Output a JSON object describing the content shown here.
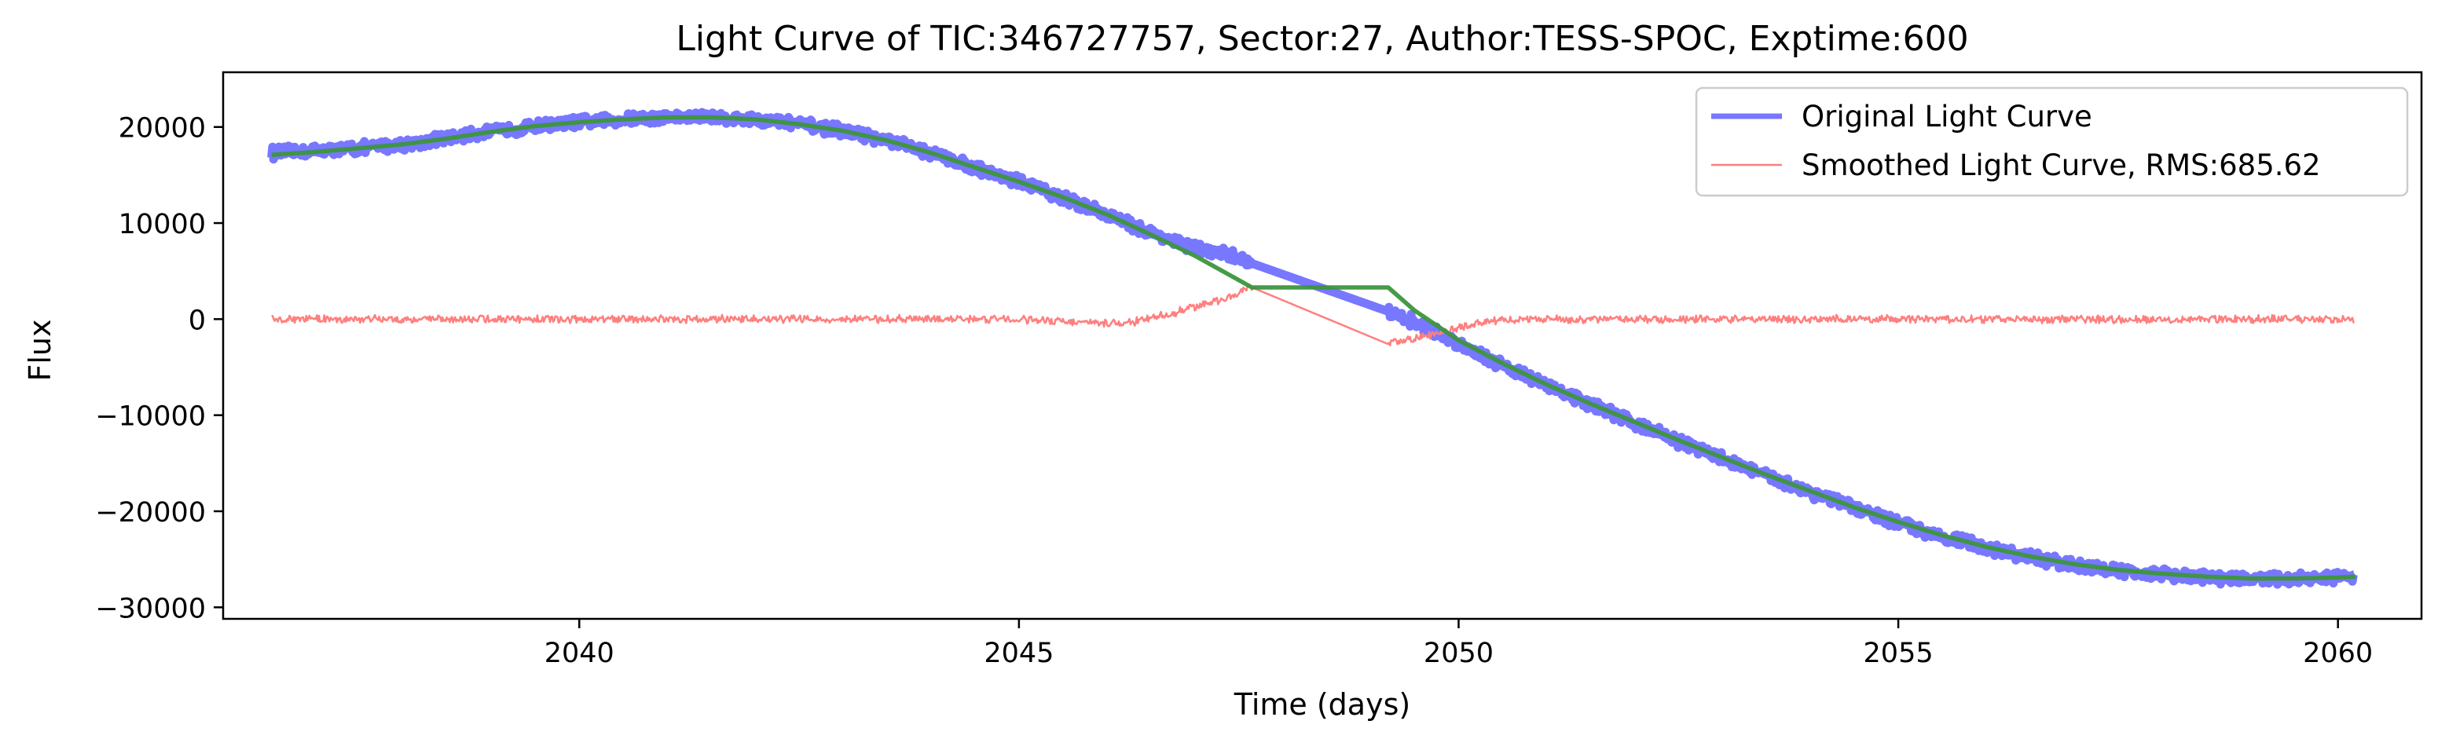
{
  "chart_data": {
    "type": "line",
    "title": "Light Curve of TIC:346727757, Sector:27, Author:TESS-SPOC, Exptime:600",
    "xlabel": "Time (days)",
    "ylabel": "Flux",
    "xlim": [
      2035.95,
      2060.95
    ],
    "ylim": [
      -31200,
      25700
    ],
    "xticks": [
      2040,
      2045,
      2050,
      2055,
      2060
    ],
    "yticks": [
      -30000,
      -20000,
      -10000,
      0,
      10000,
      20000
    ],
    "grid": false,
    "legend_position": "top-right",
    "colors": {
      "original": "#7777ff",
      "smoothed": "#3c963c",
      "residual": "#ff7f7f"
    },
    "series": [
      {
        "name": "Original Light Curve",
        "role": "original",
        "x": [
          2036.5,
          2037.0,
          2037.5,
          2038.0,
          2038.5,
          2039.0,
          2039.5,
          2040.0,
          2040.5,
          2041.0,
          2041.5,
          2042.0,
          2042.5,
          2043.0,
          2043.5,
          2044.0,
          2044.5,
          2045.0,
          2045.5,
          2046.0,
          2046.5,
          2047.0,
          2047.5,
          2047.65,
          2049.2,
          2049.5,
          2050.0,
          2050.5,
          2051.0,
          2051.5,
          2052.0,
          2052.5,
          2053.0,
          2053.5,
          2054.0,
          2054.5,
          2055.0,
          2055.5,
          2056.0,
          2056.5,
          2057.0,
          2057.5,
          2058.0,
          2058.5,
          2059.0,
          2059.5,
          2060.0,
          2060.2
        ],
        "y": [
          17300,
          17500,
          17800,
          18200,
          18800,
          19500,
          20100,
          20500,
          20800,
          21000,
          21000,
          20800,
          20300,
          19600,
          18600,
          17300,
          15800,
          14300,
          12700,
          10900,
          9000,
          7400,
          6400,
          5800,
          800,
          -300,
          -2500,
          -4800,
          -6900,
          -8900,
          -10800,
          -12700,
          -14500,
          -16300,
          -18000,
          -19700,
          -21200,
          -22600,
          -23800,
          -24800,
          -25600,
          -26200,
          -26600,
          -26900,
          -27100,
          -27100,
          -26900,
          -26800
        ]
      },
      {
        "name": "Smoothed Light Curve, RMS:685.62",
        "role": "residual",
        "x": [
          2036.5,
          2037.0,
          2038.0,
          2039.0,
          2040.0,
          2041.0,
          2042.0,
          2043.0,
          2044.0,
          2045.0,
          2045.5,
          2046.0,
          2046.3,
          2046.6,
          2046.9,
          2047.2,
          2047.5,
          2047.65,
          2049.2,
          2049.4,
          2049.7,
          2050.0,
          2050.3,
          2050.6,
          2051.0,
          2052.0,
          2053.0,
          2054.0,
          2055.0,
          2056.0,
          2057.0,
          2058.0,
          2059.0,
          2060.0,
          2060.2
        ],
        "y": [
          0,
          0,
          0,
          0,
          0,
          0,
          0,
          0,
          0,
          0,
          -200,
          -500,
          -300,
          300,
          1000,
          1800,
          2700,
          3300,
          -2600,
          -2200,
          -1600,
          -900,
          -300,
          0,
          0,
          0,
          0,
          0,
          0,
          0,
          0,
          0,
          0,
          0,
          0
        ]
      },
      {
        "role": "smoothed",
        "x": [
          2036.5,
          2037.0,
          2037.5,
          2038.0,
          2038.5,
          2039.0,
          2039.5,
          2040.0,
          2040.5,
          2041.0,
          2041.5,
          2042.0,
          2042.5,
          2043.0,
          2043.5,
          2044.0,
          2044.5,
          2045.0,
          2045.5,
          2046.0,
          2046.5,
          2047.0,
          2047.65,
          2049.2,
          2049.5,
          2050.0,
          2050.5,
          2051.0,
          2051.5,
          2052.0,
          2052.5,
          2053.0,
          2053.5,
          2054.0,
          2054.5,
          2055.0,
          2055.5,
          2056.0,
          2056.5,
          2057.0,
          2057.5,
          2058.0,
          2058.5,
          2059.0,
          2059.5,
          2060.0,
          2060.2
        ],
        "y": [
          17100,
          17400,
          17800,
          18200,
          18800,
          19500,
          20100,
          20500,
          20800,
          21000,
          21000,
          20800,
          20300,
          19600,
          18600,
          17300,
          15800,
          14300,
          12700,
          10900,
          8800,
          6600,
          3300,
          3300,
          900,
          -2200,
          -4600,
          -6800,
          -8800,
          -10700,
          -12600,
          -14400,
          -16200,
          -17900,
          -19600,
          -21100,
          -22500,
          -23700,
          -24700,
          -25500,
          -26100,
          -26500,
          -26800,
          -27000,
          -27000,
          -26900,
          -26800
        ]
      }
    ]
  }
}
